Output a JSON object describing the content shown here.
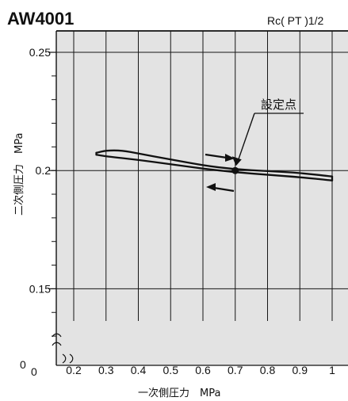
{
  "chart_data": {
    "type": "line",
    "title": "AW4001",
    "subtitle": "Rc( PT )1/2",
    "xlabel": "一次側圧力　MPa",
    "ylabel": "二次側圧力　MPa",
    "xlim": [
      0.2,
      1.0
    ],
    "ylim": [
      0.12,
      0.25
    ],
    "x_axis_break": true,
    "y_axis_break": true,
    "x_ticks": [
      0.2,
      0.3,
      0.4,
      0.5,
      0.6,
      0.7,
      0.8,
      0.9,
      1.0
    ],
    "x_tick_labels": [
      "0.2",
      "0.3",
      "0.4",
      "0.5",
      "0.6",
      "0.7",
      "0.8",
      "0.9",
      "1"
    ],
    "y_major_ticks": [
      0.15,
      0.2,
      0.25
    ],
    "y_tick_labels": [
      "0.15",
      "0.2",
      "0.25"
    ],
    "origin_labels": {
      "x": "0",
      "y": "0"
    },
    "grid": true,
    "background_color": "#e3e3e3",
    "line_color": "#111111",
    "series": [
      {
        "x": [
          0.27,
          0.3,
          0.35,
          0.4,
          0.5,
          0.6,
          0.7,
          0.8,
          0.9,
          1.0
        ],
        "y": [
          0.2075,
          0.2085,
          0.2085,
          0.2072,
          0.2047,
          0.2022,
          0.2005,
          0.1998,
          0.199,
          0.1975
        ]
      },
      {
        "x": [
          0.27,
          0.3,
          0.4,
          0.5,
          0.6,
          0.7,
          0.8,
          0.9,
          1.0
        ],
        "y": [
          0.2067,
          0.206,
          0.2045,
          0.2027,
          0.2008,
          0.1993,
          0.1982,
          0.1972,
          0.1958
        ]
      }
    ],
    "set_point": {
      "x": 0.7,
      "y": 0.2,
      "label": "設定点"
    },
    "direction_arrows": [
      "increasing",
      "decreasing"
    ]
  }
}
